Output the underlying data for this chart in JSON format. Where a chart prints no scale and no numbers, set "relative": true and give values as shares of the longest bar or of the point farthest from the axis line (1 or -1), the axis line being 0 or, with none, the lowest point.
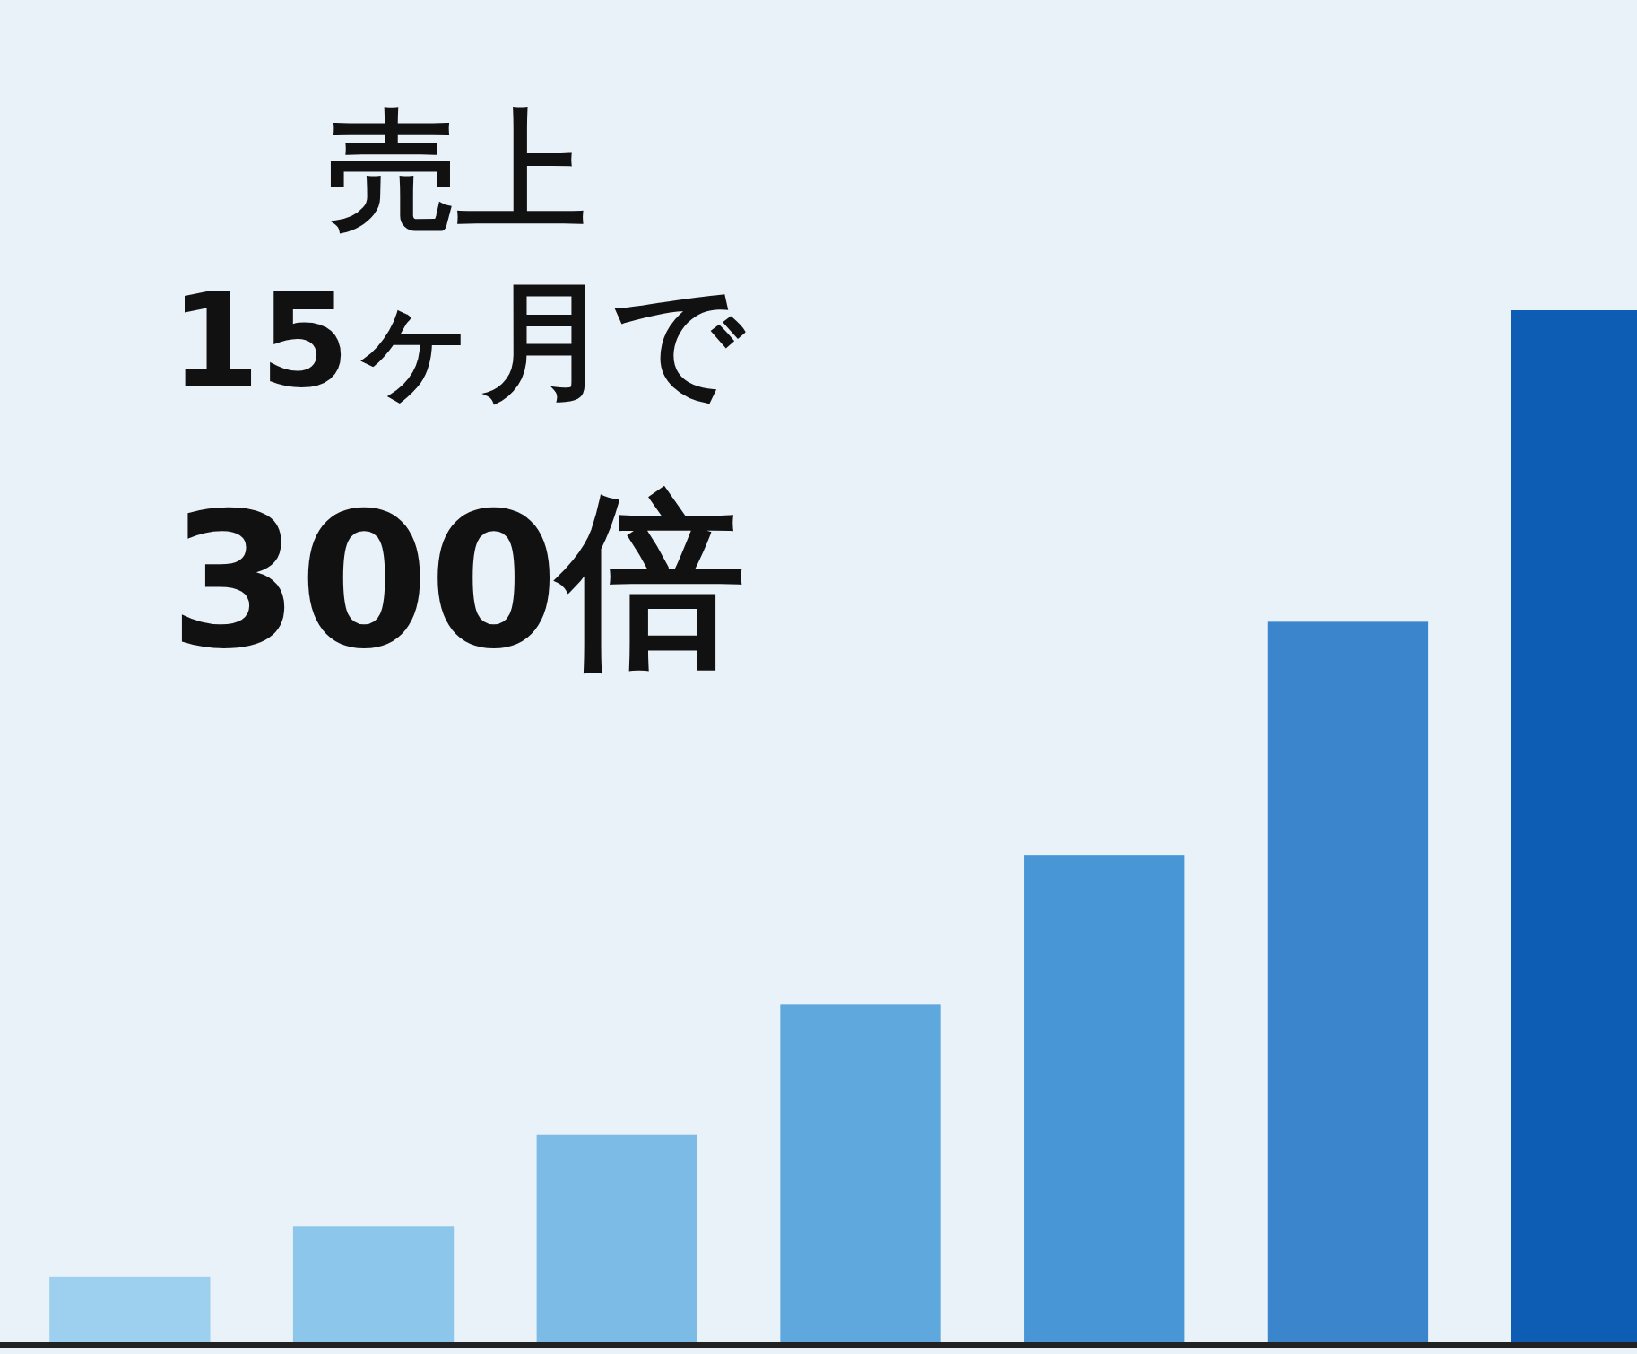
{
  "chart_data": {
    "type": "bar",
    "title": "売上\n15ヶ月で\n300倍",
    "categories": [
      null,
      null,
      null,
      null,
      null,
      null,
      null
    ],
    "values": [
      0.066,
      0.115,
      0.203,
      0.329,
      0.473,
      0.699,
      1
    ],
    "colors": [
      "#9dd0ee",
      "#8cc6ea",
      "#7bbbe6",
      "#5fa8de",
      "#4896d6",
      "#3a85cc",
      "#0e5db5"
    ],
    "relative": true
  }
}
